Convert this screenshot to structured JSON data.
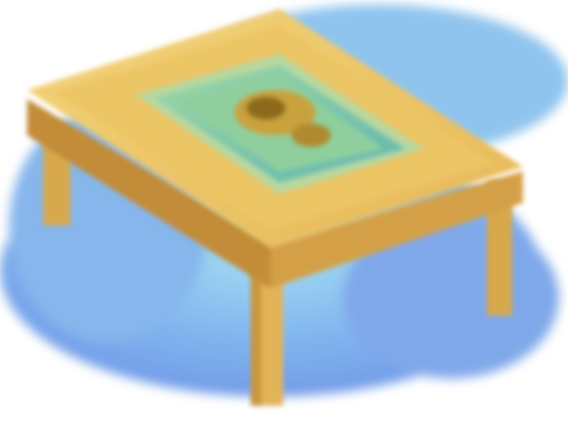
{
  "image": {
    "subject": "table-icon",
    "style": "pixelated",
    "colors": {
      "background": "#ffffff",
      "backdrop_blue": "#7fb3ee",
      "backdrop_blue_dark": "#6f96e6",
      "backdrop_highlight": "#a6e0f4",
      "wood": "#e6b756",
      "wood_light": "#f3d47a",
      "wood_dark": "#b9893f",
      "inlay_green": "#8fcf9e",
      "inlay_teal": "#5fb7b0",
      "center_gold": "#c9a23c",
      "center_dark": "#8d6a1e"
    }
  }
}
